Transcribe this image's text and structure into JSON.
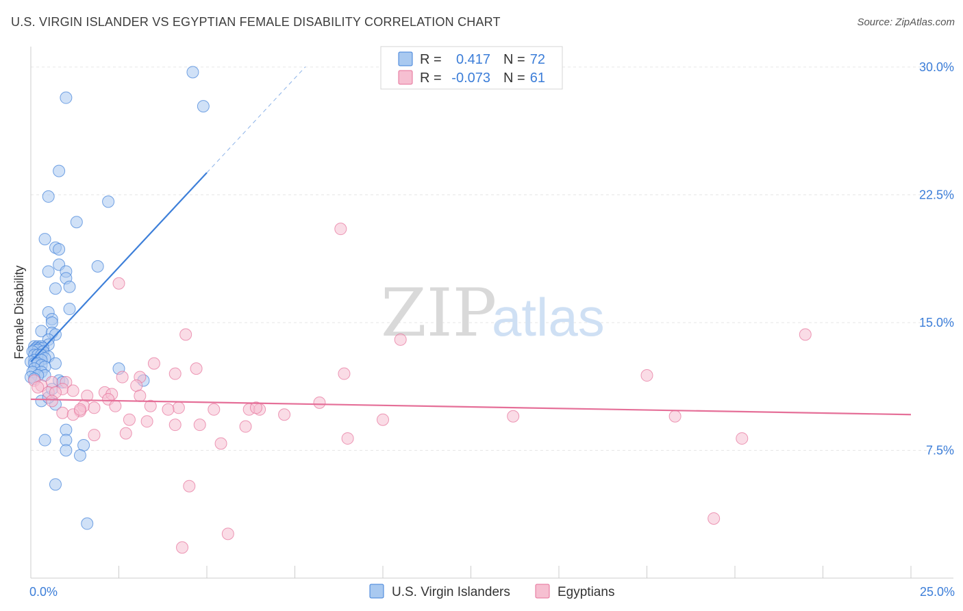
{
  "title": "U.S. VIRGIN ISLANDER VS EGYPTIAN FEMALE DISABILITY CORRELATION CHART",
  "source": "Source: ZipAtlas.com",
  "watermark": {
    "zip": "ZIP",
    "atlas": "atlas"
  },
  "legend": {
    "rows": [
      {
        "r_label": "R = ",
        "r_value": "0.417",
        "n_label": "N = ",
        "n_value": "72"
      },
      {
        "r_label": "R = ",
        "r_value": "-0.073",
        "n_label": "N = ",
        "n_value": "61"
      }
    ]
  },
  "colors": {
    "blue": "#3d7fd9",
    "blue_fill": "#a9c9f0",
    "pink": "#e56f98",
    "pink_fill": "#f6bfd1",
    "tick_text": "#3b7dd8",
    "grid": "#e6e6e6"
  },
  "chart_data": {
    "type": "scatter",
    "title": "U.S. VIRGIN ISLANDER VS EGYPTIAN FEMALE DISABILITY CORRELATION CHART",
    "xlabel": "",
    "ylabel": "Female Disability",
    "xlim": [
      0,
      25
    ],
    "ylim": [
      0,
      30.8
    ],
    "x_tick_labels": [
      {
        "value": 0,
        "label": "0.0%"
      },
      {
        "value": 25,
        "label": "25.0%"
      }
    ],
    "y_tick_labels": [
      {
        "value": 7.5,
        "label": "7.5%"
      },
      {
        "value": 15.0,
        "label": "15.0%"
      },
      {
        "value": 22.5,
        "label": "22.5%"
      },
      {
        "value": 30.0,
        "label": "30.0%"
      }
    ],
    "x_minor_ticks": [
      2.5,
      5,
      7.5,
      10,
      12.5,
      15,
      17.5,
      20,
      22.5,
      25
    ],
    "series": [
      {
        "name": "U.S. Virgin Islanders",
        "color": "#3d7fd9",
        "trend": {
          "x0": 0.0,
          "y0": 12.7,
          "x1": 5.0,
          "y1": 23.8,
          "dash_to_x": 7.8
        },
        "points": [
          [
            4.6,
            29.7
          ],
          [
            1.0,
            28.2
          ],
          [
            4.9,
            27.7
          ],
          [
            0.8,
            23.9
          ],
          [
            0.5,
            22.4
          ],
          [
            2.2,
            22.1
          ],
          [
            1.3,
            20.9
          ],
          [
            0.4,
            19.9
          ],
          [
            0.7,
            19.4
          ],
          [
            0.8,
            19.3
          ],
          [
            0.8,
            18.4
          ],
          [
            1.9,
            18.3
          ],
          [
            0.5,
            18.0
          ],
          [
            1.0,
            18.0
          ],
          [
            1.0,
            17.6
          ],
          [
            1.1,
            17.1
          ],
          [
            0.7,
            17.0
          ],
          [
            1.1,
            15.8
          ],
          [
            0.5,
            15.6
          ],
          [
            0.6,
            15.2
          ],
          [
            0.6,
            15.0
          ],
          [
            0.3,
            14.5
          ],
          [
            0.6,
            14.4
          ],
          [
            0.7,
            14.3
          ],
          [
            0.5,
            14.0
          ],
          [
            0.5,
            13.7
          ],
          [
            0.1,
            13.6
          ],
          [
            0.2,
            13.6
          ],
          [
            0.3,
            13.6
          ],
          [
            0.15,
            13.5
          ],
          [
            0.25,
            13.5
          ],
          [
            0.35,
            13.5
          ],
          [
            0.1,
            13.4
          ],
          [
            0.2,
            13.4
          ],
          [
            0.05,
            13.3
          ],
          [
            0.35,
            13.3
          ],
          [
            0.1,
            13.1
          ],
          [
            0.2,
            13.1
          ],
          [
            0.3,
            13.1
          ],
          [
            0.5,
            13.0
          ],
          [
            0.4,
            12.9
          ],
          [
            0.1,
            12.8
          ],
          [
            0.3,
            12.8
          ],
          [
            0.0,
            12.7
          ],
          [
            0.1,
            12.6
          ],
          [
            0.2,
            12.6
          ],
          [
            0.7,
            12.6
          ],
          [
            0.3,
            12.5
          ],
          [
            0.4,
            12.4
          ],
          [
            0.1,
            12.3
          ],
          [
            2.5,
            12.3
          ],
          [
            0.05,
            12.1
          ],
          [
            0.3,
            12.1
          ],
          [
            0.4,
            11.9
          ],
          [
            0.2,
            11.9
          ],
          [
            0.0,
            11.8
          ],
          [
            0.1,
            11.7
          ],
          [
            3.2,
            11.6
          ],
          [
            0.8,
            11.6
          ],
          [
            0.9,
            11.5
          ],
          [
            0.3,
            10.4
          ],
          [
            0.7,
            10.2
          ],
          [
            0.4,
            8.1
          ],
          [
            1.0,
            8.7
          ],
          [
            1.0,
            8.1
          ],
          [
            1.5,
            7.8
          ],
          [
            1.0,
            7.5
          ],
          [
            1.4,
            7.2
          ],
          [
            0.7,
            5.5
          ],
          [
            1.6,
            3.2
          ],
          [
            0.5,
            10.6
          ],
          [
            0.6,
            11.1
          ]
        ]
      },
      {
        "name": "Egyptians",
        "color": "#e56f98",
        "trend": {
          "x0": 0.0,
          "y0": 10.5,
          "x1": 25.0,
          "y1": 9.6
        },
        "points": [
          [
            8.8,
            20.5
          ],
          [
            2.5,
            17.3
          ],
          [
            4.4,
            14.3
          ],
          [
            22.0,
            14.3
          ],
          [
            10.5,
            14.0
          ],
          [
            3.5,
            12.6
          ],
          [
            4.7,
            12.3
          ],
          [
            4.1,
            12.0
          ],
          [
            8.9,
            12.0
          ],
          [
            17.5,
            11.9
          ],
          [
            2.6,
            11.8
          ],
          [
            3.1,
            11.8
          ],
          [
            0.1,
            11.6
          ],
          [
            0.6,
            11.5
          ],
          [
            1.0,
            11.5
          ],
          [
            0.3,
            11.3
          ],
          [
            0.2,
            11.2
          ],
          [
            3.0,
            11.3
          ],
          [
            0.9,
            11.1
          ],
          [
            1.2,
            11.0
          ],
          [
            0.5,
            10.9
          ],
          [
            0.7,
            10.9
          ],
          [
            2.1,
            10.9
          ],
          [
            2.3,
            10.8
          ],
          [
            1.6,
            10.7
          ],
          [
            3.1,
            10.7
          ],
          [
            2.2,
            10.5
          ],
          [
            0.6,
            10.4
          ],
          [
            8.2,
            10.3
          ],
          [
            1.5,
            10.1
          ],
          [
            2.4,
            10.1
          ],
          [
            3.4,
            10.1
          ],
          [
            1.8,
            10.0
          ],
          [
            4.2,
            10.0
          ],
          [
            5.2,
            9.9
          ],
          [
            6.2,
            9.9
          ],
          [
            3.9,
            9.9
          ],
          [
            1.4,
            9.8
          ],
          [
            0.9,
            9.7
          ],
          [
            6.5,
            9.9
          ],
          [
            1.2,
            9.6
          ],
          [
            7.2,
            9.6
          ],
          [
            13.7,
            9.5
          ],
          [
            18.3,
            9.5
          ],
          [
            10.0,
            9.3
          ],
          [
            2.8,
            9.3
          ],
          [
            3.3,
            9.2
          ],
          [
            4.1,
            9.0
          ],
          [
            4.8,
            9.0
          ],
          [
            6.1,
            8.9
          ],
          [
            1.8,
            8.4
          ],
          [
            2.7,
            8.5
          ],
          [
            9.0,
            8.2
          ],
          [
            20.2,
            8.2
          ],
          [
            5.4,
            7.9
          ],
          [
            4.5,
            5.4
          ],
          [
            19.4,
            3.5
          ],
          [
            5.6,
            2.6
          ],
          [
            4.3,
            1.8
          ],
          [
            6.4,
            10.0
          ],
          [
            1.4,
            9.9
          ]
        ]
      }
    ],
    "legend_position": "top-center"
  }
}
